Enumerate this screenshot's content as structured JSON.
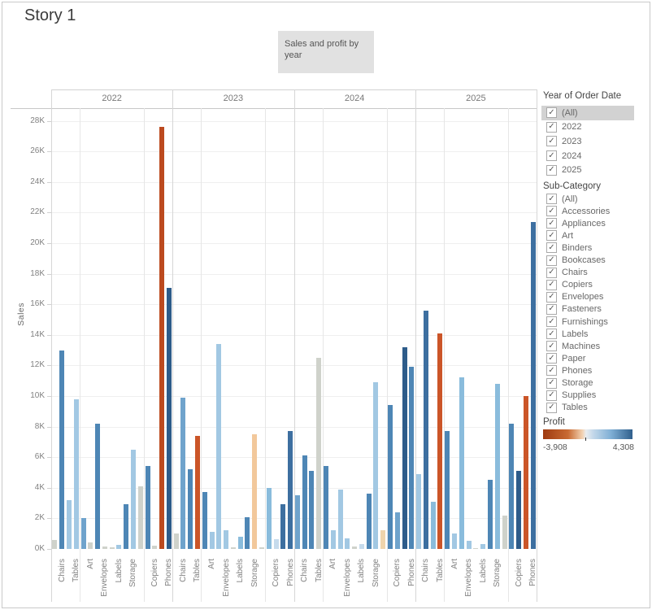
{
  "story": {
    "title": "Story 1"
  },
  "caption": {
    "text": "Sales and profit by year"
  },
  "chart_data": {
    "type": "bar",
    "title": "Sales and profit by year",
    "xlabel": "Year of Order Date / Sub-Category",
    "ylabel": "Sales",
    "y_unit": "K (thousands)",
    "ylim": [
      0,
      29
    ],
    "grid": true,
    "yticks": [
      "0K",
      "2K",
      "4K",
      "6K",
      "8K",
      "10K",
      "12K",
      "14K",
      "16K",
      "18K",
      "20K",
      "22K",
      "24K",
      "26K",
      "28K"
    ],
    "color_encoding": "Profit (dark orange = most negative, gray = neutral, dark blue = most positive)",
    "subcategories_order": [
      "Bookcases",
      "Chairs",
      "Furnishings",
      "Tables",
      "Appliances",
      "Art",
      "Binders",
      "Envelopes",
      "Fasteners",
      "Labels",
      "Paper",
      "Storage",
      "Supplies",
      "Accessories",
      "Copiers",
      "Machines",
      "Phones"
    ],
    "labeled_slot_indices": [
      1,
      3,
      5,
      7,
      9,
      11,
      14,
      16
    ],
    "palette": {
      "g": "#CFD2CB",
      "do": "#BC4A1F",
      "o": "#CB5528",
      "po": "#F2C89B",
      "tan": "#EFD4AC",
      "pb": "#C6DBEC",
      "lb": "#A2C8E3",
      "sb": "#8ABCDC",
      "mb": "#6FA3CC",
      "b": "#4E86B5",
      "stb": "#3D6FA0",
      "db": "#2E5C8A"
    },
    "series": [
      {
        "year": "2022",
        "values_k": [
          0.6,
          13.0,
          3.2,
          9.8,
          2.0,
          0.4,
          8.2,
          0.15,
          0.08,
          0.25,
          2.9,
          6.5,
          4.1,
          5.4,
          0.2,
          27.6,
          17.1
        ],
        "colors": [
          "g",
          "b",
          "lb",
          "lb",
          "mb",
          "g",
          "b",
          "g",
          "g",
          "lb",
          "b",
          "lb",
          "g",
          "b",
          "g",
          "do",
          "db"
        ]
      },
      {
        "year": "2023",
        "values_k": [
          1.0,
          9.9,
          5.2,
          7.4,
          3.7,
          1.1,
          13.4,
          1.2,
          0.1,
          0.8,
          2.1,
          7.5,
          0.1,
          4.0,
          0.65,
          2.9,
          7.7
        ],
        "colors": [
          "g",
          "mb",
          "b",
          "o",
          "b",
          "lb",
          "lb",
          "lb",
          "g",
          "sb",
          "b",
          "po",
          "g",
          "sb",
          "pb",
          "stb",
          "stb"
        ]
      },
      {
        "year": "2024",
        "values_k": [
          3.5,
          6.1,
          5.1,
          12.5,
          5.4,
          1.2,
          3.9,
          0.7,
          0.15,
          0.3,
          3.6,
          10.9,
          1.2,
          9.4,
          2.4,
          13.2,
          11.9
        ],
        "colors": [
          "mb",
          "b",
          "b",
          "g",
          "b",
          "lb",
          "lb",
          "lb",
          "g",
          "pb",
          "b",
          "lb",
          "tan",
          "b",
          "mb",
          "db",
          "b"
        ]
      },
      {
        "year": "2025",
        "values_k": [
          4.9,
          15.6,
          3.1,
          14.1,
          7.7,
          1.0,
          11.2,
          0.55,
          0.05,
          0.3,
          4.5,
          10.8,
          2.2,
          8.2,
          5.1,
          10.0,
          21.4
        ],
        "colors": [
          "lb",
          "stb",
          "sb",
          "o",
          "b",
          "lb",
          "sb",
          "lb",
          "g",
          "lb",
          "b",
          "sb",
          "g",
          "b",
          "db",
          "o",
          "stb"
        ]
      }
    ]
  },
  "filters": {
    "year": {
      "title": "Year of Order Date",
      "items": [
        {
          "label": "(All)",
          "checked": true,
          "selected": true
        },
        {
          "label": "2022",
          "checked": true,
          "selected": false
        },
        {
          "label": "2023",
          "checked": true,
          "selected": false
        },
        {
          "label": "2024",
          "checked": true,
          "selected": false
        },
        {
          "label": "2025",
          "checked": true,
          "selected": false
        }
      ]
    },
    "subcategory": {
      "title": "Sub-Category",
      "items": [
        {
          "label": "(All)",
          "checked": true
        },
        {
          "label": "Accessories",
          "checked": true
        },
        {
          "label": "Appliances",
          "checked": true
        },
        {
          "label": "Art",
          "checked": true
        },
        {
          "label": "Binders",
          "checked": true
        },
        {
          "label": "Bookcases",
          "checked": true
        },
        {
          "label": "Chairs",
          "checked": true
        },
        {
          "label": "Copiers",
          "checked": true
        },
        {
          "label": "Envelopes",
          "checked": true
        },
        {
          "label": "Fasteners",
          "checked": true
        },
        {
          "label": "Furnishings",
          "checked": true
        },
        {
          "label": "Labels",
          "checked": true
        },
        {
          "label": "Machines",
          "checked": true
        },
        {
          "label": "Paper",
          "checked": true
        },
        {
          "label": "Phones",
          "checked": true
        },
        {
          "label": "Storage",
          "checked": true
        },
        {
          "label": "Supplies",
          "checked": true
        },
        {
          "label": "Tables",
          "checked": true
        }
      ]
    }
  },
  "legend": {
    "title": "Profit",
    "min_label": "-3,908",
    "max_label": "4,308",
    "zero_position_pct": 47.6,
    "gradient_stops": [
      "#9E3A10 0%",
      "#C96A33 28%",
      "#F2D2B2 44%",
      "#EAECEE 48%",
      "#C3D8EA 56%",
      "#7FAFD5 76%",
      "#2F5F8C 100%"
    ]
  }
}
